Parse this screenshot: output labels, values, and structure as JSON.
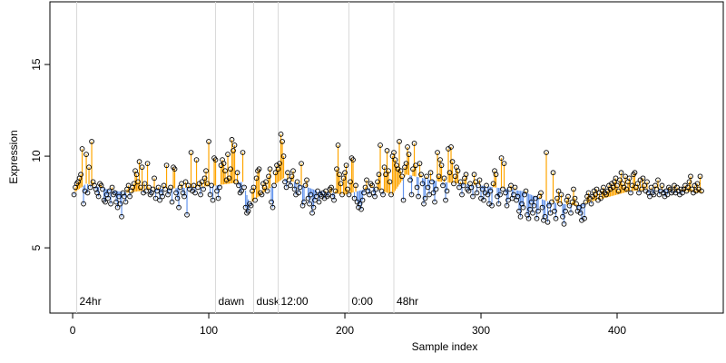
{
  "chart_data": {
    "type": "scatter",
    "xlabel": "Sample index",
    "ylabel": "Expression",
    "xlim": [
      -16.7,
      478
    ],
    "ylim": [
      1.44,
      18.42
    ],
    "xticks": [
      0,
      100,
      200,
      300,
      400
    ],
    "yticks": [
      5,
      10,
      15
    ],
    "colors": {
      "above": "#ffa500",
      "below": "#6495ed",
      "point": "#000000",
      "event": "#d9d9d9",
      "event_label": "#a6a6a6"
    },
    "events": [
      {
        "x": 3,
        "label": "24hr"
      },
      {
        "x": 105,
        "label": "dawn"
      },
      {
        "x": 133,
        "label": "dusk"
      },
      {
        "x": 151,
        "label": "12:00"
      },
      {
        "x": 203,
        "label": "0:00"
      },
      {
        "x": 236,
        "label": "48hr"
      }
    ],
    "baseline": {
      "x": [
        1,
        10,
        25,
        40,
        60,
        90,
        105,
        125,
        130,
        140,
        155,
        180,
        200,
        220,
        235,
        245,
        270,
        300,
        330,
        350,
        370,
        390,
        410,
        430,
        462
      ],
      "values": [
        8.0,
        8.5,
        8.2,
        8.0,
        8.2,
        8.3,
        8.4,
        8.6,
        7.4,
        8.0,
        8.8,
        8.1,
        7.9,
        8.3,
        7.9,
        9.0,
        8.6,
        8.4,
        8.1,
        7.5,
        7.3,
        7.7,
        8.1,
        8.2,
        8.0
      ]
    },
    "x": [
      1,
      2,
      3,
      4,
      5,
      6,
      7,
      8,
      9,
      10,
      11,
      12,
      13,
      14,
      15,
      16,
      17,
      18,
      19,
      20,
      21,
      22,
      23,
      24,
      25,
      26,
      27,
      28,
      29,
      30,
      31,
      32,
      33,
      34,
      35,
      36,
      37,
      38,
      39,
      40,
      41,
      42,
      43,
      44,
      45,
      46,
      47,
      48,
      49,
      50,
      51,
      52,
      53,
      54,
      55,
      56,
      57,
      58,
      59,
      60,
      61,
      62,
      63,
      64,
      65,
      66,
      67,
      68,
      69,
      70,
      71,
      72,
      73,
      74,
      75,
      76,
      77,
      78,
      79,
      80,
      81,
      82,
      83,
      84,
      85,
      86,
      87,
      88,
      89,
      90,
      91,
      92,
      93,
      94,
      95,
      96,
      97,
      98,
      99,
      100,
      101,
      102,
      103,
      104,
      105,
      106,
      107,
      108,
      109,
      110,
      111,
      112,
      113,
      114,
      115,
      116,
      117,
      118,
      119,
      120,
      121,
      122,
      123,
      124,
      125,
      126,
      127,
      128,
      129,
      130,
      131,
      132,
      133,
      134,
      135,
      136,
      137,
      138,
      139,
      140,
      141,
      142,
      143,
      144,
      145,
      146,
      147,
      148,
      149,
      150,
      151,
      152,
      153,
      154,
      155,
      156,
      157,
      158,
      159,
      160,
      161,
      162,
      163,
      164,
      165,
      166,
      167,
      168,
      169,
      170,
      171,
      172,
      173,
      174,
      175,
      176,
      177,
      178,
      179,
      180,
      181,
      182,
      183,
      184,
      185,
      186,
      187,
      188,
      189,
      190,
      191,
      192,
      193,
      194,
      195,
      196,
      197,
      198,
      199,
      200,
      201,
      202,
      203,
      204,
      205,
      206,
      207,
      208,
      209,
      210,
      211,
      212,
      213,
      214,
      215,
      216,
      217,
      218,
      219,
      220,
      221,
      222,
      223,
      224,
      225,
      226,
      227,
      228,
      229,
      230,
      231,
      232,
      233,
      234,
      235,
      236,
      237,
      238,
      239,
      240,
      241,
      242,
      243,
      244,
      245,
      246,
      247,
      248,
      249,
      250,
      251,
      252,
      253,
      254,
      255,
      256,
      257,
      258,
      259,
      260,
      261,
      262,
      263,
      264,
      265,
      266,
      267,
      268,
      269,
      270,
      271,
      272,
      273,
      274,
      275,
      276,
      277,
      278,
      279,
      280,
      281,
      282,
      283,
      284,
      285,
      286,
      287,
      288,
      289,
      290,
      291,
      292,
      293,
      294,
      295,
      296,
      297,
      298,
      299,
      300,
      301,
      302,
      303,
      304,
      305,
      306,
      307,
      308,
      309,
      310,
      311,
      312,
      313,
      314,
      315,
      316,
      317,
      318,
      319,
      320,
      321,
      322,
      323,
      324,
      325,
      326,
      327,
      328,
      329,
      330,
      331,
      332,
      333,
      334,
      335,
      336,
      337,
      338,
      339,
      340,
      341,
      342,
      343,
      344,
      345,
      346,
      347,
      348,
      349,
      350,
      351,
      352,
      353,
      354,
      355,
      356,
      357,
      358,
      359,
      360,
      361,
      362,
      363,
      364,
      365,
      366,
      367,
      368,
      369,
      370,
      371,
      372,
      373,
      374,
      375,
      376,
      377,
      378,
      379,
      380,
      381,
      382,
      383,
      384,
      385,
      386,
      387,
      388,
      389,
      390,
      391,
      392,
      393,
      394,
      395,
      396,
      397,
      398,
      399,
      400,
      401,
      402,
      403,
      404,
      405,
      406,
      407,
      408,
      409,
      410,
      411,
      412,
      413,
      414,
      415,
      416,
      417,
      418,
      419,
      420,
      421,
      422,
      423,
      424,
      425,
      426,
      427,
      428,
      429,
      430,
      431,
      432,
      433,
      434,
      435,
      436,
      437,
      438,
      439,
      440,
      441,
      442,
      443,
      444,
      445,
      446,
      447,
      448,
      449,
      450,
      451,
      452,
      453,
      454,
      455,
      456,
      457,
      458,
      459,
      460,
      461,
      462
    ],
    "values": [
      7.9,
      8.3,
      8.5,
      8.6,
      8.8,
      9.0,
      10.4,
      7.4,
      8.1,
      10.1,
      8.0,
      9.4,
      8.3,
      10.8,
      8.6,
      8.4,
      8.2,
      8.0,
      7.8,
      8.5,
      8.4,
      8.2,
      7.6,
      7.5,
      7.9,
      7.7,
      8.1,
      7.4,
      8.3,
      7.9,
      8.0,
      7.5,
      7.2,
      7.8,
      7.4,
      6.7,
      8.0,
      7.8,
      7.5,
      8.2,
      8.4,
      7.8,
      8.1,
      8.3,
      8.5,
      9.2,
      9.0,
      8.6,
      9.7,
      8.3,
      9.4,
      8.0,
      8.5,
      8.1,
      9.6,
      8.3,
      7.9,
      8.0,
      8.2,
      8.8,
      7.7,
      8.1,
      8.3,
      7.6,
      8.0,
      7.8,
      8.4,
      8.2,
      9.5,
      7.9,
      8.1,
      8.3,
      7.5,
      9.4,
      9.3,
      8.0,
      7.7,
      7.2,
      8.3,
      8.5,
      8.0,
      7.8,
      8.6,
      6.8,
      8.4,
      8.2,
      10.2,
      8.1,
      8.4,
      8.0,
      9.8,
      8.3,
      8.5,
      7.9,
      8.6,
      8.2,
      8.8,
      9.2,
      8.5,
      10.8,
      7.9,
      8.4,
      7.6,
      9.9,
      9.8,
      8.1,
      7.7,
      8.3,
      9.5,
      9.8,
      9.6,
      9.2,
      8.7,
      10.1,
      8.8,
      9.3,
      10.9,
      10.3,
      10.6,
      8.6,
      9.1,
      8.4,
      8.0,
      8.1,
      10.2,
      8.3,
      7.2,
      6.9,
      7.0,
      7.4,
      7.3,
      8.1,
      8.3,
      7.6,
      8.8,
      9.2,
      9.3,
      8.0,
      7.9,
      8.5,
      8.3,
      8.6,
      8.1,
      8.9,
      9.3,
      7.5,
      7.2,
      8.4,
      9.1,
      9.5,
      9.3,
      9.6,
      11.2,
      10.8,
      10.0,
      8.6,
      8.3,
      9.1,
      8.7,
      8.4,
      8.9,
      9.2,
      8.2,
      7.9,
      8.6,
      8.0,
      8.3,
      9.6,
      7.3,
      7.5,
      8.4,
      8.7,
      7.7,
      7.4,
      7.9,
      6.9,
      7.2,
      7.6,
      7.8,
      8.1,
      7.5,
      7.9,
      7.8,
      8.0,
      7.7,
      8.1,
      7.8,
      7.9,
      8.2,
      8.3,
      7.8,
      7.6,
      8.1,
      9.3,
      10.6,
      9.0,
      8.5,
      7.9,
      8.8,
      9.1,
      9.5,
      8.2,
      7.9,
      8.6,
      9.9,
      9.8,
      7.7,
      8.4,
      7.5,
      7.2,
      7.4,
      7.1,
      7.6,
      8.0,
      8.3,
      8.7,
      8.1,
      7.9,
      8.5,
      8.4,
      8.0,
      7.8,
      8.2,
      8.6,
      9.0,
      10.6,
      8.1,
      7.9,
      9.4,
      9.0,
      10.3,
      9.2,
      8.6,
      7.9,
      10.0,
      10.2,
      9.8,
      9.5,
      9.3,
      10.8,
      9.2,
      8.9,
      7.6,
      9.4,
      9.6,
      10.5,
      10.1,
      8.7,
      7.9,
      9.3,
      10.7,
      9.5,
      8.3,
      7.8,
      9.6,
      9.0,
      8.5,
      7.4,
      7.7,
      8.9,
      8.3,
      7.9,
      9.1,
      8.6,
      8.0,
      7.5,
      8.2,
      10.2,
      8.9,
      9.8,
      9.5,
      8.4,
      8.8,
      7.6,
      8.1,
      10.4,
      9.1,
      10.5,
      9.7,
      8.5,
      8.9,
      9.4,
      9.2,
      8.3,
      8.6,
      7.9,
      8.4,
      8.8,
      9.0,
      8.2,
      8.1,
      8.5,
      8.3,
      7.8,
      9.0,
      8.6,
      8.0,
      8.4,
      8.7,
      7.7,
      8.2,
      7.6,
      8.0,
      8.4,
      7.9,
      7.4,
      8.1,
      7.3,
      8.5,
      9.2,
      9.0,
      7.8,
      7.4,
      7.9,
      9.9,
      8.2,
      9.6,
      8.0,
      7.3,
      7.6,
      8.2,
      8.4,
      7.7,
      7.9,
      8.3,
      7.6,
      7.8,
      7.0,
      6.7,
      7.4,
      7.2,
      7.9,
      8.1,
      6.8,
      6.6,
      7.1,
      7.5,
      6.9,
      7.3,
      7.7,
      6.6,
      7.0,
      7.8,
      8.0,
      7.2,
      6.5,
      6.7,
      10.2,
      6.4,
      7.3,
      6.9,
      7.5,
      9.1,
      7.0,
      6.6,
      7.7,
      8.1,
      7.4,
      7.9,
      6.7,
      6.3,
      7.0,
      7.6,
      7.8,
      7.3,
      6.9,
      7.5,
      8.2,
      7.7,
      7.4,
      7.0,
      7.2,
      6.9,
      6.5,
      7.3,
      6.6,
      7.5,
      7.8,
      8.0,
      7.7,
      7.4,
      7.8,
      8.1,
      7.9,
      8.2,
      7.6,
      8.0,
      7.7,
      8.1,
      8.3,
      8.0,
      7.9,
      8.1,
      8.4,
      8.2,
      8.5,
      8.3,
      8.6,
      8.8,
      8.4,
      8.1,
      8.7,
      9.1,
      8.5,
      8.3,
      8.9,
      8.2,
      8.6,
      8.8,
      8.0,
      8.4,
      9.0,
      9.1,
      8.3,
      8.5,
      8.0,
      8.7,
      8.2,
      8.8,
      8.4,
      8.1,
      8.6,
      8.0,
      7.8,
      8.3,
      8.0,
      7.9,
      8.4,
      8.2,
      8.7,
      7.9,
      8.1,
      8.4,
      8.0,
      7.8,
      8.1,
      7.9,
      8.3,
      8.2,
      8.0,
      8.1,
      8.4,
      8.0,
      8.3,
      8.1,
      7.9,
      8.2,
      8.0,
      8.2,
      8.4,
      8.1,
      8.3,
      8.6,
      8.9,
      8.2,
      8.0,
      8.4,
      8.1,
      8.5,
      8.2,
      8.9,
      8.1
    ]
  }
}
